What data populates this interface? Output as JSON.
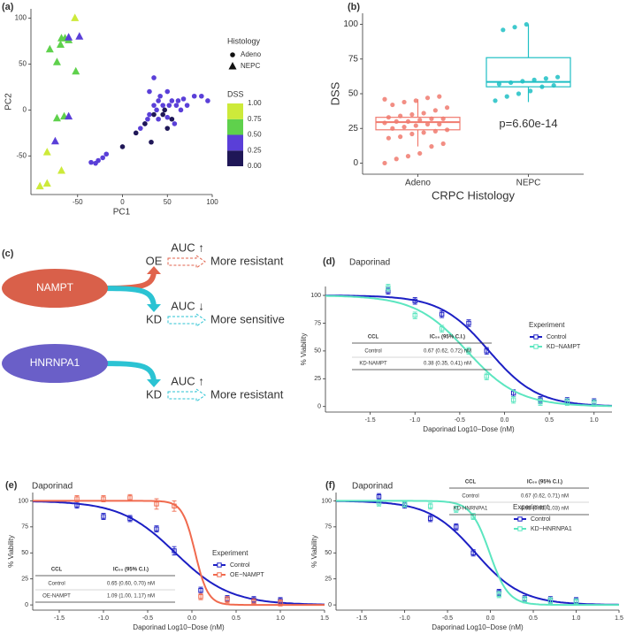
{
  "chart_data": [
    {
      "type": "scatter",
      "label": "(a)",
      "xlabel": "PC1",
      "ylabel": "PC2",
      "xlim": [
        -102,
        100
      ],
      "ylim": [
        -92,
        110
      ],
      "xticks": [
        -50,
        0,
        50,
        100
      ],
      "yticks": [
        -50,
        0,
        50,
        100
      ],
      "shape_title": "Histology",
      "color_title": "DSS",
      "color_ticks": [
        {
          "value": 0,
          "label": "0.00"
        },
        0.25,
        {
          "value": 0.5,
          "label": "0.50"
        },
        0.75,
        {
          "value": 1,
          "label": "1.00"
        }
      ],
      "color_colors": [
        "#1f1757",
        "#5a3fd8",
        "#5fd14c",
        "#cdea3a"
      ],
      "series": [
        {
          "name": "Adeno",
          "shape": "circle",
          "x": [
            -35,
            -30,
            -27,
            -22,
            -18,
            0,
            15,
            20,
            25,
            28,
            30,
            32,
            35,
            35,
            38,
            40,
            40,
            42,
            45,
            45,
            47,
            50,
            50,
            52,
            55,
            55,
            58,
            60,
            62,
            65,
            68,
            72,
            80,
            88,
            95,
            35,
            25,
            50,
            30
          ],
          "values": [
            -57,
            -58,
            -55,
            -52,
            -48,
            -40,
            -25,
            -20,
            -15,
            -10,
            -5,
            -35,
            -5,
            5,
            0,
            -10,
            10,
            15,
            -5,
            5,
            0,
            -20,
            -8,
            5,
            10,
            -10,
            -15,
            5,
            10,
            0,
            12,
            5,
            15,
            15,
            10,
            35,
            -15,
            20,
            20
          ],
          "dss": [
            0.4,
            0.4,
            0.45,
            0.4,
            0.4,
            0.1,
            0.1,
            0.45,
            0.4,
            0.4,
            0.45,
            0.1,
            0.1,
            0.4,
            0.4,
            0.4,
            0.45,
            0.4,
            0.1,
            0.4,
            0.15,
            0.1,
            0.4,
            0.4,
            0.4,
            0.15,
            0.4,
            0.4,
            0.4,
            0.4,
            0.4,
            0.4,
            0.4,
            0.4,
            0.4,
            0.4,
            0.1,
            0.4,
            0.4
          ]
        },
        {
          "name": "NEPC",
          "shape": "triangle",
          "x": [
            -53,
            -68,
            -64,
            -60,
            -69,
            -81,
            -73,
            -52,
            -60,
            -48,
            -73,
            -65,
            -60,
            -75,
            -84,
            -68,
            -92,
            -84
          ],
          "values": [
            100,
            78,
            78,
            76,
            71,
            66,
            52,
            42,
            79,
            80,
            -9,
            -7,
            -7,
            -34,
            -46,
            -66,
            -83,
            -80
          ],
          "dss": [
            0.9,
            0.6,
            0.6,
            0.6,
            0.6,
            0.6,
            0.6,
            0.6,
            0.4,
            0.4,
            0.6,
            0.6,
            0.4,
            0.4,
            0.9,
            0.9,
            0.9,
            0.9
          ]
        }
      ]
    },
    {
      "type": "box",
      "label": "(b)",
      "xlabel": "CRPC Histology",
      "ylabel": "DSS",
      "annotation": "p=6.60e-14",
      "annotation_y": 28,
      "ylim": [
        -8,
        108
      ],
      "yticks": [
        0,
        25,
        50,
        75,
        100
      ],
      "categories": [
        "Adeno",
        "NEPC"
      ],
      "colors": [
        "#f07a6e",
        "#1fbfc4"
      ],
      "boxes": [
        {
          "low": 12,
          "q1": 24,
          "median": 29.5,
          "q3": 33,
          "high": 46
        },
        {
          "low": 44,
          "q1": 55,
          "median": 58.5,
          "q3": 76,
          "high": 100
        }
      ],
      "points": [
        [
          0,
          3,
          5,
          7,
          12,
          14,
          18,
          19,
          21,
          22,
          23,
          24,
          25,
          26,
          27,
          28,
          28,
          29,
          30,
          30,
          31,
          32,
          32,
          33,
          34,
          35,
          36,
          38,
          40,
          42,
          44,
          45,
          47,
          48,
          46
        ],
        [
          45,
          48,
          50,
          52,
          55,
          56,
          57,
          58,
          59,
          60,
          61,
          62,
          96,
          98,
          100
        ]
      ]
    },
    {
      "type": "dose",
      "label": "(d)",
      "title": "Daporinad",
      "xlabel": "Daporinad Log10−Dose (nM)",
      "ylabel": "% Viability",
      "legend_title": "Experiment",
      "xlim": [
        -2,
        1.2
      ],
      "ylim": [
        -5,
        108
      ],
      "xticks": [
        -1.5,
        {
          "value": -1,
          "label": "-1.0"
        },
        -0.5,
        {
          "value": 0,
          "label": "0.0"
        },
        0.5,
        {
          "value": 1,
          "label": "1.0"
        }
      ],
      "yticks": [
        0,
        25,
        50,
        75,
        100
      ],
      "x": [
        -1.3,
        -1.0,
        -0.7,
        -0.4,
        -0.2,
        0.1,
        0.4,
        0.7,
        1.0
      ],
      "series": [
        {
          "name": "Control",
          "color": "#1c1fc4",
          "ic50": 0.67,
          "hill": 1.6,
          "values": [
            104,
            95,
            83,
            75,
            50,
            12,
            6,
            5,
            4
          ],
          "errors": [
            3,
            3,
            3,
            3,
            3,
            3,
            3,
            3,
            3
          ]
        },
        {
          "name": "KD−NAMPT",
          "color": "#5ce6c0",
          "ic50": 0.38,
          "hill": 1.5,
          "values": [
            107,
            82,
            70,
            50,
            27,
            6,
            4,
            4,
            3
          ],
          "errors": [
            3,
            3,
            3,
            3,
            3,
            3,
            3,
            3,
            3
          ]
        }
      ],
      "table": {
        "header": [
          "CCL",
          "IC₅₀ (95% C.I.)"
        ],
        "rows": [
          [
            "Control",
            "0.67 (0.62, 0.72) nM"
          ],
          [
            "KD-NAMPT",
            "0.38 (0.35, 0.41) nM"
          ]
        ]
      }
    },
    {
      "type": "dose",
      "label": "(e)",
      "title": "Daporinad",
      "xlabel": "Daporinad Log10−Dose (nM)",
      "ylabel": "% Viability",
      "legend_title": "Experiment",
      "xlim": [
        -1.8,
        1.5
      ],
      "ylim": [
        -5,
        108
      ],
      "xticks": [
        -1.5,
        {
          "value": -1,
          "label": "-1.0"
        },
        -0.5,
        {
          "value": 0,
          "label": "0.0"
        },
        0.5,
        {
          "value": 1,
          "label": "1.0"
        },
        1.5
      ],
      "yticks": [
        0,
        25,
        50,
        75,
        100
      ],
      "x": [
        -1.3,
        -1.0,
        -0.7,
        -0.4,
        -0.2,
        0.1,
        0.4,
        0.7,
        1.0
      ],
      "series": [
        {
          "name": "Control",
          "color": "#1c1fc4",
          "ic50": 0.65,
          "hill": 1.4,
          "values": [
            96,
            85,
            83,
            73,
            52,
            14,
            6,
            5,
            4
          ],
          "errors": [
            3,
            3,
            3,
            3,
            4,
            3,
            3,
            3,
            3
          ]
        },
        {
          "name": "OE−NAMPT",
          "color": "#f06a4e",
          "ic50": 1.09,
          "hill": 6,
          "values": [
            102,
            102,
            103,
            97,
            95,
            8,
            5,
            3,
            2
          ],
          "errors": [
            3,
            3,
            3,
            5,
            5,
            3,
            3,
            3,
            3
          ]
        }
      ],
      "table": {
        "header": [
          "CCL",
          "IC₅₀ (95% C.I.)"
        ],
        "rows": [
          [
            "Control",
            "0.65 (0.60, 0.70) nM"
          ],
          [
            "OE-NAMPT",
            "1.09 (1.00, 1.17) nM"
          ]
        ]
      }
    },
    {
      "type": "dose",
      "label": "(f)",
      "title": "Daporinad",
      "xlabel": "Daporinad Log10−Dose (nM)",
      "ylabel": "% Viability",
      "legend_title": "Experiment",
      "xlim": [
        -1.8,
        1.5
      ],
      "ylim": [
        -5,
        108
      ],
      "xticks": [
        -1.5,
        {
          "value": -1,
          "label": "-1.0"
        },
        -0.5,
        {
          "value": 0,
          "label": "0.0"
        },
        0.5,
        {
          "value": 1,
          "label": "1.0"
        },
        1.5
      ],
      "yticks": [
        0,
        25,
        50,
        75,
        100
      ],
      "x": [
        -1.3,
        -1.0,
        -0.7,
        -0.4,
        -0.2,
        0.1,
        0.4,
        0.7,
        1.0
      ],
      "series": [
        {
          "name": "Control",
          "color": "#1c1fc4",
          "ic50": 0.67,
          "hill": 1.6,
          "values": [
            104,
            96,
            83,
            75,
            50,
            12,
            6,
            5,
            4
          ],
          "errors": [
            3,
            3,
            3,
            3,
            3,
            3,
            3,
            3,
            3
          ]
        },
        {
          "name": "KD−HNRNPA1",
          "color": "#5ce6c0",
          "ic50": 0.98,
          "hill": 4,
          "values": [
            98,
            97,
            95,
            92,
            85,
            10,
            5,
            4,
            3
          ],
          "errors": [
            3,
            3,
            3,
            3,
            3,
            3,
            3,
            3,
            3
          ]
        }
      ],
      "table": {
        "header": [
          "CCL",
          "IC₅₀ (95% C.I.)"
        ],
        "rows": [
          [
            "Control",
            "0.67 (0.62, 0.71) nM"
          ],
          [
            "KD-HNRNPA1",
            "0.98 (0.93, 1.03) nM"
          ]
        ]
      }
    }
  ],
  "diagram": {
    "label": "(c)",
    "nodes": [
      {
        "label": "NAMPT",
        "branches": [
          {
            "label": "OE",
            "auc": "AUC ↑",
            "effect": "More resistant"
          },
          {
            "label": "KD",
            "auc": "AUC ↓",
            "effect": "More sensitive"
          }
        ]
      },
      {
        "label": "HNRNPA1",
        "branches": [
          {
            "label": "KD",
            "auc": "AUC ↑",
            "effect": "More resistant"
          }
        ]
      }
    ]
  }
}
